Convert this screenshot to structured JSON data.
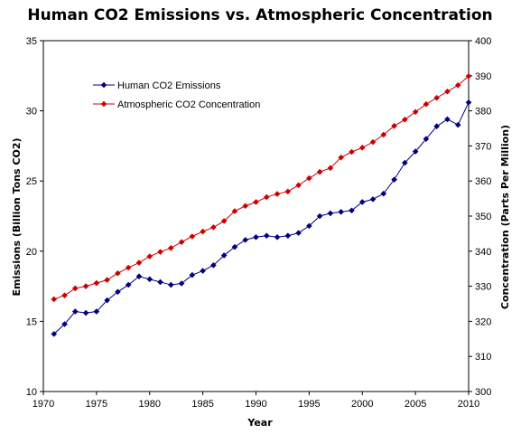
{
  "chart_data": {
    "type": "line",
    "title": "Human CO2 Emissions vs. Atmospheric Concentration",
    "xlabel": "Year",
    "ylabel": "Emissions (Billion Tons CO2)",
    "y2label": "Concentration (Parts Per Million)",
    "xlim": [
      1970,
      2010
    ],
    "ylim": [
      10,
      35
    ],
    "y2lim": [
      300,
      400
    ],
    "x_ticks": [
      1970,
      1975,
      1980,
      1985,
      1990,
      1995,
      2000,
      2005,
      2010
    ],
    "y_ticks": [
      10,
      15,
      20,
      25,
      30,
      35
    ],
    "y2_ticks": [
      300,
      310,
      320,
      330,
      340,
      350,
      360,
      370,
      380,
      390,
      400
    ],
    "grid": false,
    "legend_position": "top-left",
    "x": [
      1971,
      1972,
      1973,
      1974,
      1975,
      1976,
      1977,
      1978,
      1979,
      1980,
      1981,
      1982,
      1983,
      1984,
      1985,
      1986,
      1987,
      1988,
      1989,
      1990,
      1991,
      1992,
      1993,
      1994,
      1995,
      1996,
      1997,
      1998,
      1999,
      2000,
      2001,
      2002,
      2003,
      2004,
      2005,
      2006,
      2007,
      2008,
      2009,
      2010
    ],
    "series": [
      {
        "name": "Human CO2 Emissions",
        "axis": "left",
        "color": "#000080",
        "marker": "diamond",
        "values": [
          14.1,
          14.8,
          15.7,
          15.6,
          15.7,
          16.5,
          17.1,
          17.6,
          18.2,
          18.0,
          17.8,
          17.6,
          17.7,
          18.3,
          18.6,
          19.0,
          19.7,
          20.3,
          20.8,
          21.0,
          21.1,
          21.0,
          21.1,
          21.3,
          21.8,
          22.5,
          22.7,
          22.8,
          22.9,
          23.5,
          23.7,
          24.1,
          25.1,
          26.3,
          27.1,
          28.0,
          28.9,
          29.4,
          29.0,
          30.6
        ]
      },
      {
        "name": "Atmospheric CO2 Concentration",
        "axis": "right",
        "color": "#cc0000",
        "marker": "diamond",
        "values": [
          326.3,
          327.4,
          329.4,
          330.0,
          330.9,
          331.8,
          333.7,
          335.3,
          336.7,
          338.5,
          339.8,
          340.9,
          342.6,
          344.2,
          345.6,
          346.8,
          348.6,
          351.4,
          352.9,
          354.0,
          355.4,
          356.3,
          357.0,
          358.8,
          360.8,
          362.6,
          363.7,
          366.7,
          368.3,
          369.5,
          371.1,
          373.2,
          375.7,
          377.5,
          379.7,
          381.9,
          383.7,
          385.5,
          387.3,
          389.9
        ]
      }
    ]
  }
}
